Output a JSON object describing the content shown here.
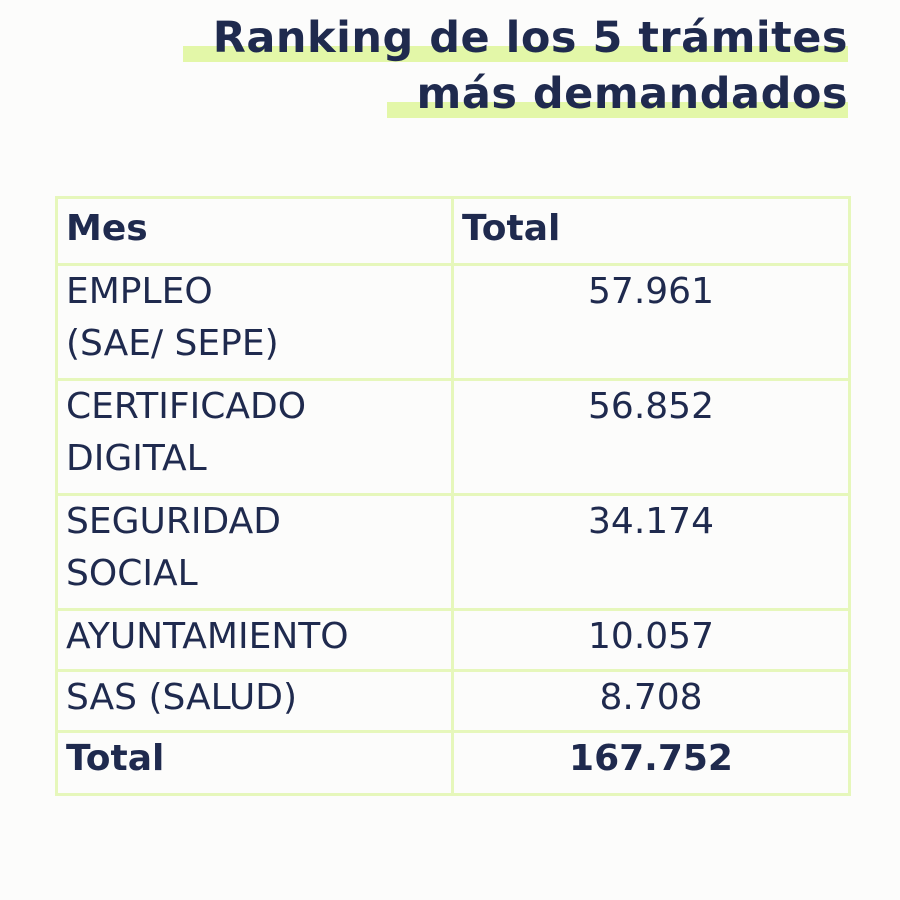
{
  "title": {
    "line1": "Ranking de los 5 trámites",
    "line2": "más demandados"
  },
  "table": {
    "headers": [
      "Mes",
      "Total"
    ],
    "rows": [
      {
        "label_l1": "EMPLEO",
        "label_l2": "(SAE/ SEPE)",
        "value": "57.961"
      },
      {
        "label_l1": "CERTIFICADO",
        "label_l2": "DIGITAL",
        "value": "56.852"
      },
      {
        "label_l1": "SEGURIDAD",
        "label_l2": "SOCIAL",
        "value": "34.174"
      },
      {
        "label_l1": "AYUNTAMIENTO",
        "value": "10.057"
      },
      {
        "label_l1": "SAS (SALUD)",
        "value": "8.708"
      }
    ],
    "total": {
      "label": "Total",
      "value": "167.752"
    }
  },
  "colors": {
    "text": "#1f2a4e",
    "accent": "#e6f7bb",
    "background": "#fcfcfb"
  }
}
